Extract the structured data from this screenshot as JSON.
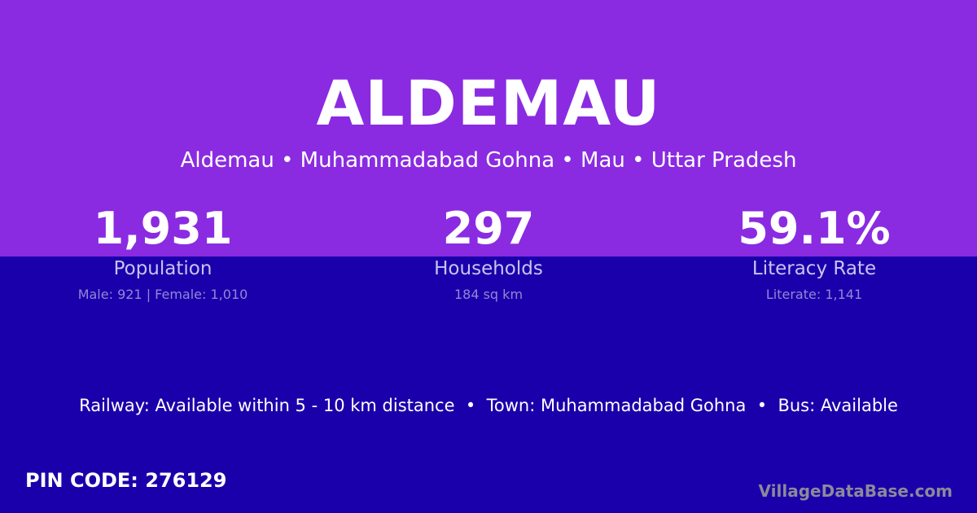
{
  "title": "ALDEMAU",
  "subtitle": "Aldemau • Muhammadabad Gohna • Mau • Uttar Pradesh",
  "stats": [
    {
      "value": "1,931",
      "label": "Population",
      "detail": "Male: 921 | Female: 1,010"
    },
    {
      "value": "297",
      "label": "Households",
      "detail": "184 sq km"
    },
    {
      "value": "59.1%",
      "label": "Literacy Rate",
      "detail": "Literate: 1,141"
    }
  ],
  "facts": "Railway: Available within 5 - 10 km distance  •  Town: Muhammadabad Gohna  •  Bus: Available",
  "pin": "PIN CODE: 276129",
  "brand": "VillageDataBase.com",
  "colors": {
    "top": "#8a2be2",
    "bottom": "#1a00aa"
  }
}
